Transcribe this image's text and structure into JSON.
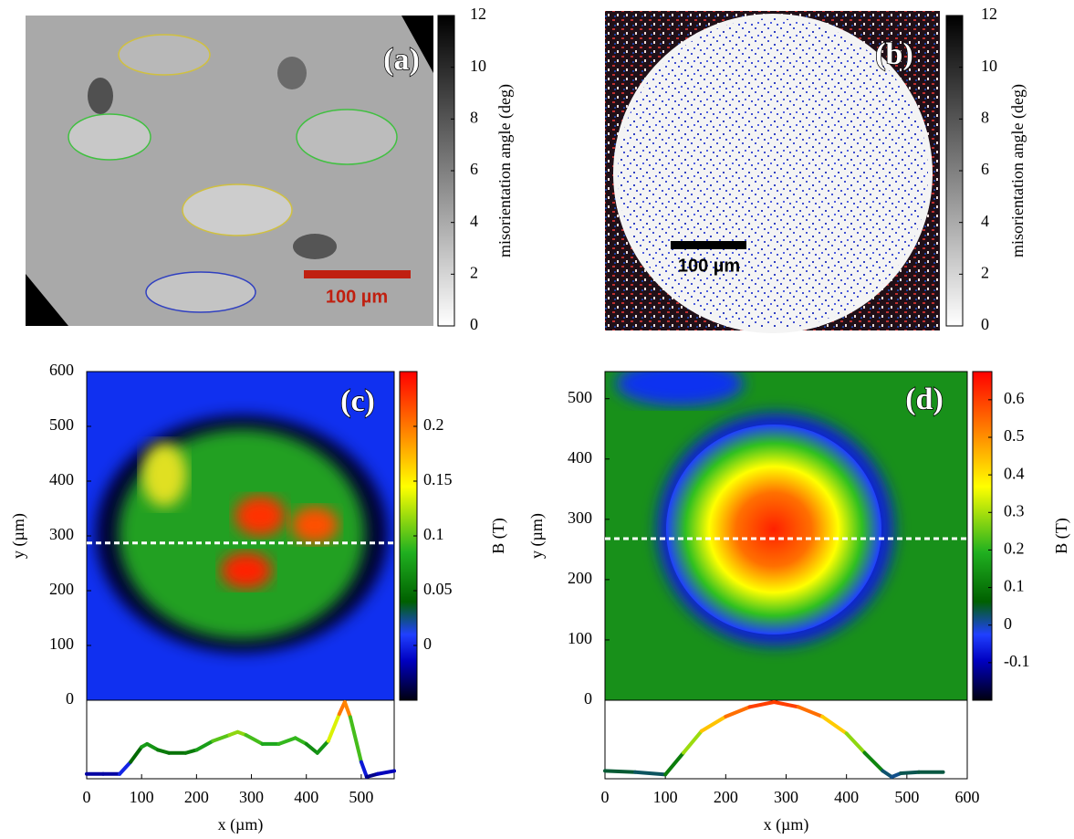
{
  "chart_data": [
    {
      "type": "image",
      "label": "(a)",
      "scale_bar": "100 µm",
      "colorbar": {
        "label": "misorientation angle (deg)",
        "lim": [
          0,
          12
        ],
        "ticks": [
          0,
          2,
          4,
          6,
          8,
          10,
          12
        ]
      }
    },
    {
      "type": "image",
      "label": "(b)",
      "scale_bar": "100 µm",
      "colorbar": {
        "label": "misorientation angle (deg)",
        "lim": [
          0,
          12
        ],
        "ticks": [
          0,
          2,
          4,
          6,
          8,
          10,
          12
        ]
      }
    },
    {
      "type": "heatmap",
      "label": "(c)",
      "xlabel": "x (µm)",
      "ylabel": "y (µm)",
      "xlim": [
        0,
        560
      ],
      "xticks": [
        0,
        100,
        200,
        300,
        400,
        500
      ],
      "ylim": [
        0,
        600
      ],
      "yticks": [
        0,
        100,
        200,
        300,
        400,
        500,
        600
      ],
      "cut_y": 287,
      "colorbar": {
        "label": "B (T)",
        "lim": [
          -0.05,
          0.25
        ],
        "ticks": [
          0,
          0.05,
          0.1,
          0.15,
          0.2
        ]
      },
      "profile": {
        "x": [
          0,
          30,
          60,
          80,
          100,
          110,
          130,
          150,
          180,
          200,
          230,
          260,
          275,
          290,
          320,
          350,
          380,
          400,
          420,
          440,
          460,
          470,
          480,
          500,
          510,
          530,
          560
        ],
        "values": [
          -0.02,
          -0.02,
          -0.02,
          0.02,
          0.07,
          0.08,
          0.06,
          0.05,
          0.05,
          0.06,
          0.09,
          0.11,
          0.12,
          0.11,
          0.08,
          0.08,
          0.1,
          0.08,
          0.05,
          0.09,
          0.18,
          0.22,
          0.17,
          0.02,
          -0.03,
          -0.02,
          -0.01
        ]
      }
    },
    {
      "type": "heatmap",
      "label": "(d)",
      "xlabel": "x (µm)",
      "ylabel": "y (µm)",
      "xlim": [
        0,
        600
      ],
      "xticks": [
        0,
        100,
        200,
        300,
        400,
        500,
        600
      ],
      "ylim": [
        0,
        545
      ],
      "yticks": [
        0,
        100,
        200,
        300,
        400,
        500
      ],
      "cut_y": 268,
      "colorbar": {
        "label": "B (T)",
        "lim": [
          -0.2,
          0.675
        ],
        "ticks": [
          -0.1,
          0,
          0.1,
          0.2,
          0.3,
          0.4,
          0.5,
          0.6
        ]
      },
      "profile": {
        "x": [
          0,
          50,
          100,
          130,
          160,
          200,
          240,
          280,
          320,
          360,
          400,
          430,
          460,
          475,
          490,
          520,
          560
        ],
        "values": [
          0.05,
          0.04,
          0.02,
          0.2,
          0.38,
          0.5,
          0.58,
          0.62,
          0.58,
          0.5,
          0.36,
          0.2,
          0.05,
          0,
          0.03,
          0.04,
          0.04
        ]
      }
    }
  ]
}
